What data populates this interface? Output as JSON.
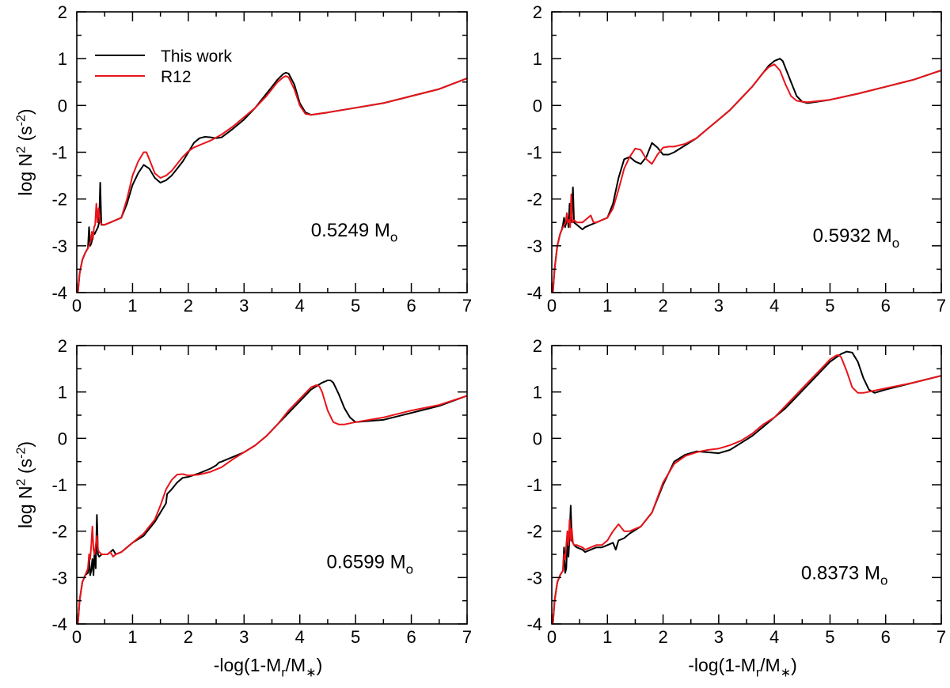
{
  "figure": {
    "xlabel": "-log(1-M_r/M_*)",
    "ylabel": "log N^2 (s^-2)",
    "legend": {
      "placement": "top-left of first panel",
      "entries": [
        {
          "name": "This work",
          "color": "#000000"
        },
        {
          "name": "R12",
          "color": "#e8141a"
        }
      ]
    }
  },
  "chart_data": [
    {
      "type": "line",
      "label": "0.5249 M_o",
      "xlim": [
        0,
        7
      ],
      "ylim": [
        -4,
        2
      ],
      "xticks": [
        0,
        1,
        2,
        3,
        4,
        5,
        6,
        7
      ],
      "yticks": [
        -4,
        -3,
        -2,
        -1,
        0,
        1,
        2
      ],
      "series": [
        {
          "name": "This work",
          "color": "#000000",
          "x": [
            0.02,
            0.05,
            0.1,
            0.15,
            0.2,
            0.22,
            0.24,
            0.26,
            0.28,
            0.3,
            0.32,
            0.34,
            0.36,
            0.38,
            0.4,
            0.42,
            0.44,
            0.46,
            0.5,
            0.6,
            0.7,
            0.8,
            0.9,
            1.0,
            1.1,
            1.2,
            1.3,
            1.4,
            1.5,
            1.6,
            1.7,
            1.8,
            1.9,
            2.0,
            2.1,
            2.2,
            2.3,
            2.4,
            2.5,
            2.6,
            2.8,
            3.0,
            3.2,
            3.4,
            3.5,
            3.6,
            3.7,
            3.75,
            3.8,
            3.9,
            4.0,
            4.1,
            4.2,
            4.5,
            5.0,
            5.5,
            6.0,
            6.5,
            7.0
          ],
          "y": [
            -4.0,
            -3.6,
            -3.3,
            -3.15,
            -3.05,
            -2.6,
            -3.0,
            -2.95,
            -2.85,
            -2.7,
            -2.75,
            -2.7,
            -2.65,
            -2.6,
            -2.5,
            -1.65,
            -2.55,
            -2.55,
            -2.55,
            -2.5,
            -2.45,
            -2.4,
            -2.1,
            -1.7,
            -1.45,
            -1.27,
            -1.35,
            -1.55,
            -1.65,
            -1.6,
            -1.5,
            -1.35,
            -1.2,
            -1.0,
            -0.8,
            -0.7,
            -0.67,
            -0.68,
            -0.7,
            -0.68,
            -0.5,
            -0.3,
            -0.05,
            0.25,
            0.4,
            0.55,
            0.67,
            0.7,
            0.68,
            0.45,
            0.05,
            -0.15,
            -0.2,
            -0.15,
            -0.05,
            0.05,
            0.2,
            0.35,
            0.58
          ]
        },
        {
          "name": "R12",
          "color": "#e8141a",
          "x": [
            0.02,
            0.05,
            0.1,
            0.15,
            0.2,
            0.25,
            0.27,
            0.29,
            0.31,
            0.33,
            0.35,
            0.37,
            0.39,
            0.42,
            0.46,
            0.5,
            0.6,
            0.7,
            0.8,
            0.9,
            1.0,
            1.1,
            1.2,
            1.25,
            1.3,
            1.4,
            1.5,
            1.6,
            1.7,
            1.8,
            1.9,
            2.0,
            2.1,
            2.2,
            2.4,
            2.6,
            2.8,
            3.0,
            3.2,
            3.4,
            3.5,
            3.6,
            3.7,
            3.75,
            3.8,
            3.9,
            4.0,
            4.1,
            4.2,
            4.5,
            5.0,
            5.5,
            6.0,
            6.5,
            7.0
          ],
          "y": [
            -4.0,
            -3.6,
            -3.3,
            -3.15,
            -3.05,
            -2.9,
            -2.7,
            -2.85,
            -2.6,
            -2.55,
            -2.1,
            -2.5,
            -2.2,
            -2.5,
            -2.55,
            -2.55,
            -2.5,
            -2.45,
            -2.4,
            -2.0,
            -1.5,
            -1.2,
            -1.0,
            -1.0,
            -1.15,
            -1.45,
            -1.55,
            -1.5,
            -1.4,
            -1.25,
            -1.1,
            -0.98,
            -0.9,
            -0.85,
            -0.75,
            -0.62,
            -0.45,
            -0.25,
            -0.05,
            0.2,
            0.35,
            0.5,
            0.6,
            0.63,
            0.6,
            0.35,
            0.0,
            -0.18,
            -0.2,
            -0.15,
            -0.05,
            0.05,
            0.2,
            0.35,
            0.58
          ]
        }
      ]
    },
    {
      "type": "line",
      "label": "0.5932 M_o",
      "xlim": [
        0,
        7
      ],
      "ylim": [
        -4,
        2
      ],
      "xticks": [
        0,
        1,
        2,
        3,
        4,
        5,
        6,
        7
      ],
      "yticks": [
        -4,
        -3,
        -2,
        -1,
        0,
        1,
        2
      ],
      "series": [
        {
          "name": "This work",
          "color": "#000000",
          "x": [
            0.02,
            0.05,
            0.1,
            0.15,
            0.18,
            0.2,
            0.22,
            0.24,
            0.26,
            0.28,
            0.3,
            0.32,
            0.34,
            0.36,
            0.38,
            0.4,
            0.45,
            0.55,
            0.6,
            0.7,
            0.8,
            0.9,
            1.0,
            1.1,
            1.2,
            1.3,
            1.4,
            1.5,
            1.6,
            1.7,
            1.8,
            1.9,
            2.0,
            2.1,
            2.2,
            2.4,
            2.6,
            2.8,
            3.0,
            3.2,
            3.4,
            3.6,
            3.8,
            3.9,
            4.0,
            4.1,
            4.15,
            4.2,
            4.3,
            4.4,
            4.5,
            4.6,
            5.0,
            5.5,
            6.0,
            6.5,
            7.0
          ],
          "y": [
            -4.0,
            -3.5,
            -3.0,
            -2.75,
            -2.65,
            -2.55,
            -2.4,
            -2.6,
            -2.5,
            -2.4,
            -2.6,
            -2.1,
            -2.5,
            -2.45,
            -1.75,
            -2.5,
            -2.55,
            -2.65,
            -2.6,
            -2.55,
            -2.5,
            -2.45,
            -2.4,
            -2.1,
            -1.55,
            -1.15,
            -1.1,
            -1.2,
            -1.25,
            -1.1,
            -0.8,
            -0.9,
            -1.05,
            -1.05,
            -1.0,
            -0.85,
            -0.7,
            -0.5,
            -0.3,
            -0.1,
            0.15,
            0.4,
            0.7,
            0.85,
            0.95,
            1.0,
            0.95,
            0.8,
            0.5,
            0.2,
            0.08,
            0.05,
            0.12,
            0.25,
            0.4,
            0.55,
            0.75
          ]
        },
        {
          "name": "R12",
          "color": "#e8141a",
          "x": [
            0.02,
            0.05,
            0.1,
            0.15,
            0.2,
            0.25,
            0.27,
            0.29,
            0.31,
            0.33,
            0.35,
            0.37,
            0.4,
            0.45,
            0.55,
            0.7,
            0.75,
            0.8,
            0.9,
            1.0,
            1.1,
            1.2,
            1.3,
            1.4,
            1.5,
            1.6,
            1.7,
            1.8,
            1.9,
            2.0,
            2.1,
            2.2,
            2.4,
            2.6,
            2.8,
            3.0,
            3.2,
            3.4,
            3.6,
            3.8,
            3.9,
            4.0,
            4.1,
            4.2,
            4.3,
            4.4,
            4.5,
            4.6,
            5.0,
            5.5,
            6.0,
            6.5,
            7.0
          ],
          "y": [
            -4.0,
            -3.5,
            -3.0,
            -2.75,
            -2.6,
            -2.5,
            -2.3,
            -2.5,
            -2.45,
            -2.6,
            -1.9,
            -2.5,
            -2.45,
            -2.5,
            -2.5,
            -2.35,
            -2.5,
            -2.5,
            -2.45,
            -2.4,
            -2.2,
            -1.8,
            -1.35,
            -1.1,
            -0.92,
            -0.95,
            -1.15,
            -1.25,
            -1.05,
            -0.9,
            -0.88,
            -0.88,
            -0.82,
            -0.7,
            -0.5,
            -0.3,
            -0.1,
            0.15,
            0.4,
            0.7,
            0.82,
            0.88,
            0.75,
            0.45,
            0.2,
            0.1,
            0.08,
            0.07,
            0.12,
            0.25,
            0.4,
            0.55,
            0.75
          ]
        }
      ]
    },
    {
      "type": "line",
      "label": "0.6599 M_o",
      "xlim": [
        0,
        7
      ],
      "ylim": [
        -4,
        2
      ],
      "xticks": [
        0,
        1,
        2,
        3,
        4,
        5,
        6,
        7
      ],
      "yticks": [
        -4,
        -3,
        -2,
        -1,
        0,
        1,
        2
      ],
      "series": [
        {
          "name": "This work",
          "color": "#000000",
          "x": [
            0.02,
            0.05,
            0.1,
            0.15,
            0.2,
            0.22,
            0.24,
            0.26,
            0.28,
            0.3,
            0.32,
            0.34,
            0.36,
            0.38,
            0.4,
            0.45,
            0.55,
            0.6,
            0.65,
            0.7,
            0.8,
            0.9,
            1.0,
            1.2,
            1.4,
            1.5,
            1.6,
            1.62,
            1.7,
            1.8,
            1.9,
            2.0,
            2.2,
            2.4,
            2.5,
            2.55,
            2.6,
            2.8,
            3.0,
            3.2,
            3.4,
            3.6,
            3.8,
            4.0,
            4.2,
            4.4,
            4.5,
            4.55,
            4.6,
            4.7,
            4.8,
            4.9,
            5.0,
            5.5,
            6.0,
            6.5,
            7.0
          ],
          "y": [
            -4.0,
            -3.5,
            -3.1,
            -2.95,
            -2.9,
            -2.55,
            -2.95,
            -2.85,
            -2.6,
            -2.95,
            -2.4,
            -2.8,
            -1.65,
            -2.5,
            -2.55,
            -2.5,
            -2.5,
            -2.45,
            -2.4,
            -2.5,
            -2.45,
            -2.35,
            -2.25,
            -2.1,
            -1.8,
            -1.6,
            -1.4,
            -1.2,
            -1.1,
            -0.95,
            -0.85,
            -0.83,
            -0.75,
            -0.65,
            -0.58,
            -0.52,
            -0.5,
            -0.4,
            -0.3,
            -0.15,
            0.05,
            0.3,
            0.55,
            0.8,
            1.05,
            1.2,
            1.25,
            1.25,
            1.2,
            0.95,
            0.65,
            0.45,
            0.35,
            0.4,
            0.55,
            0.7,
            0.92
          ]
        },
        {
          "name": "R12",
          "color": "#e8141a",
          "x": [
            0.02,
            0.05,
            0.1,
            0.15,
            0.2,
            0.22,
            0.24,
            0.26,
            0.28,
            0.3,
            0.32,
            0.34,
            0.36,
            0.38,
            0.4,
            0.45,
            0.55,
            0.6,
            0.65,
            0.7,
            0.8,
            0.9,
            1.0,
            1.2,
            1.4,
            1.5,
            1.6,
            1.7,
            1.8,
            1.9,
            2.0,
            2.2,
            2.4,
            2.6,
            2.8,
            3.0,
            3.2,
            3.4,
            3.6,
            3.8,
            4.0,
            4.2,
            4.3,
            4.35,
            4.4,
            4.5,
            4.6,
            4.7,
            4.8,
            5.0,
            5.5,
            6.0,
            6.5,
            7.0
          ],
          "y": [
            -4.0,
            -3.5,
            -3.1,
            -2.95,
            -2.8,
            -2.5,
            -2.6,
            -2.3,
            -1.9,
            -2.4,
            -2.5,
            -2.3,
            -2.1,
            -2.4,
            -2.45,
            -2.5,
            -2.5,
            -2.45,
            -2.55,
            -2.5,
            -2.45,
            -2.35,
            -2.25,
            -2.05,
            -1.75,
            -1.45,
            -1.1,
            -0.9,
            -0.78,
            -0.77,
            -0.8,
            -0.78,
            -0.72,
            -0.62,
            -0.45,
            -0.3,
            -0.15,
            0.05,
            0.3,
            0.6,
            0.85,
            1.1,
            1.15,
            1.12,
            1.0,
            0.6,
            0.35,
            0.3,
            0.3,
            0.35,
            0.45,
            0.6,
            0.72,
            0.92
          ]
        }
      ]
    },
    {
      "type": "line",
      "label": "0.8373 M_o",
      "xlim": [
        0,
        7
      ],
      "ylim": [
        -4,
        2
      ],
      "xticks": [
        0,
        1,
        2,
        3,
        4,
        5,
        6,
        7
      ],
      "yticks": [
        -4,
        -3,
        -2,
        -1,
        0,
        1,
        2
      ],
      "series": [
        {
          "name": "This work",
          "color": "#000000",
          "x": [
            0.02,
            0.05,
            0.1,
            0.15,
            0.2,
            0.22,
            0.24,
            0.26,
            0.28,
            0.3,
            0.32,
            0.34,
            0.36,
            0.38,
            0.4,
            0.45,
            0.55,
            0.6,
            0.7,
            0.8,
            0.9,
            1.0,
            1.1,
            1.15,
            1.2,
            1.3,
            1.4,
            1.6,
            1.8,
            2.0,
            2.2,
            2.4,
            2.6,
            2.8,
            3.0,
            3.2,
            3.4,
            3.6,
            3.8,
            4.0,
            4.2,
            4.4,
            4.6,
            4.8,
            5.0,
            5.2,
            5.3,
            5.4,
            5.5,
            5.6,
            5.7,
            5.8,
            6.0,
            6.5,
            7.0
          ],
          "y": [
            -4.0,
            -3.5,
            -3.1,
            -2.95,
            -2.85,
            -2.35,
            -2.9,
            -2.8,
            -2.2,
            -2.55,
            -2.1,
            -1.45,
            -2.2,
            -2.25,
            -2.3,
            -2.35,
            -2.4,
            -2.45,
            -2.4,
            -2.35,
            -2.35,
            -2.3,
            -2.25,
            -2.4,
            -2.2,
            -2.15,
            -2.05,
            -1.9,
            -1.6,
            -1.0,
            -0.5,
            -0.35,
            -0.28,
            -0.3,
            -0.32,
            -0.25,
            -0.1,
            0.05,
            0.25,
            0.45,
            0.65,
            0.9,
            1.15,
            1.4,
            1.65,
            1.82,
            1.87,
            1.85,
            1.65,
            1.3,
            1.05,
            0.98,
            1.05,
            1.2,
            1.35
          ]
        },
        {
          "name": "R12",
          "color": "#e8141a",
          "x": [
            0.02,
            0.05,
            0.1,
            0.15,
            0.2,
            0.22,
            0.24,
            0.26,
            0.28,
            0.3,
            0.32,
            0.34,
            0.36,
            0.38,
            0.4,
            0.45,
            0.55,
            0.6,
            0.7,
            0.8,
            0.9,
            1.0,
            1.1,
            1.2,
            1.3,
            1.4,
            1.6,
            1.8,
            2.0,
            2.2,
            2.4,
            2.6,
            2.8,
            3.0,
            3.2,
            3.4,
            3.6,
            3.8,
            4.0,
            4.2,
            4.4,
            4.6,
            4.8,
            5.0,
            5.1,
            5.15,
            5.2,
            5.3,
            5.4,
            5.5,
            5.6,
            6.0,
            6.5,
            7.0
          ],
          "y": [
            -4.0,
            -3.5,
            -3.1,
            -2.95,
            -2.85,
            -2.5,
            -2.6,
            -2.3,
            -2.0,
            -2.3,
            -1.75,
            -2.2,
            -1.95,
            -2.25,
            -2.3,
            -2.3,
            -2.35,
            -2.4,
            -2.35,
            -2.3,
            -2.3,
            -2.2,
            -2.0,
            -1.85,
            -2.0,
            -2.0,
            -1.9,
            -1.6,
            -0.95,
            -0.55,
            -0.38,
            -0.3,
            -0.25,
            -0.22,
            -0.15,
            -0.05,
            0.1,
            0.3,
            0.45,
            0.7,
            0.95,
            1.2,
            1.45,
            1.7,
            1.78,
            1.8,
            1.75,
            1.45,
            1.1,
            0.98,
            0.98,
            1.08,
            1.2,
            1.35
          ]
        }
      ]
    }
  ]
}
